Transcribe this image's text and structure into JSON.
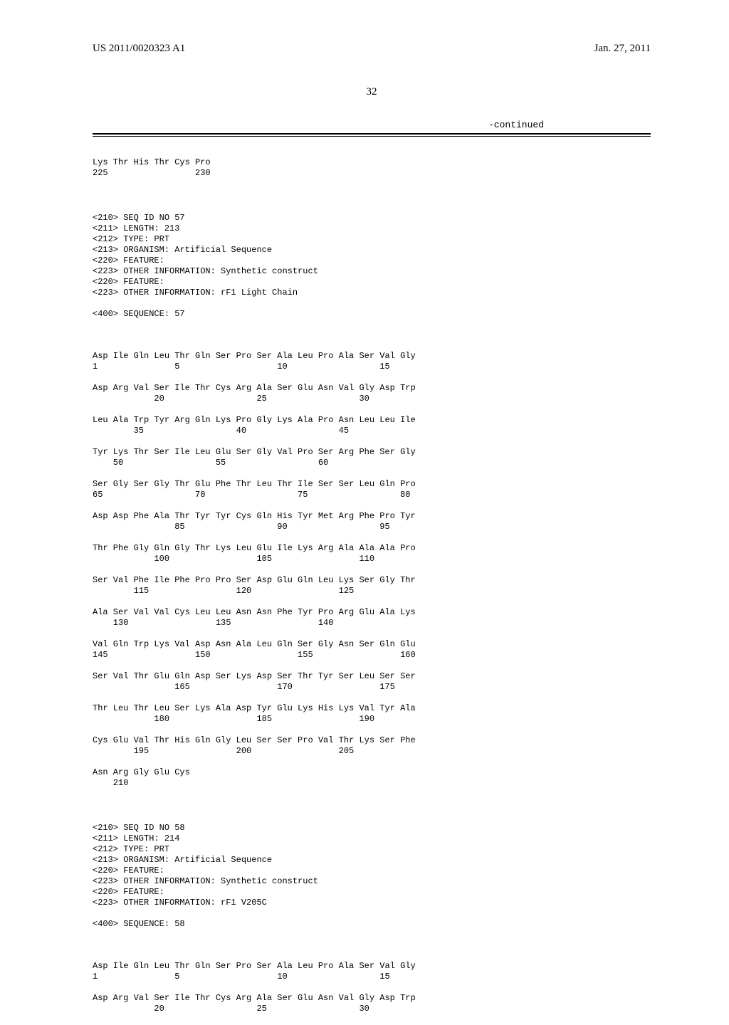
{
  "header": {
    "pub_number": "US 2011/0020323 A1",
    "pub_date": "Jan. 27, 2011"
  },
  "page_number": "32",
  "continued_label": "-continued",
  "seq_tail": {
    "line1": "Lys Thr His Thr Cys Pro",
    "line2": "225                 230"
  },
  "seq57_meta": {
    "l1": "<210> SEQ ID NO 57",
    "l2": "<211> LENGTH: 213",
    "l3": "<212> TYPE: PRT",
    "l4": "<213> ORGANISM: Artificial Sequence",
    "l5": "<220> FEATURE:",
    "l6": "<223> OTHER INFORMATION: Synthetic construct",
    "l7": "<220> FEATURE:",
    "l8": "<223> OTHER INFORMATION: rF1 Light Chain",
    "l9": "<400> SEQUENCE: 57"
  },
  "seq57": {
    "r1a": "Asp Ile Gln Leu Thr Gln Ser Pro Ser Ala Leu Pro Ala Ser Val Gly",
    "r1b": "1               5                   10                  15",
    "r2a": "Asp Arg Val Ser Ile Thr Cys Arg Ala Ser Glu Asn Val Gly Asp Trp",
    "r2b": "            20                  25                  30",
    "r3a": "Leu Ala Trp Tyr Arg Gln Lys Pro Gly Lys Ala Pro Asn Leu Leu Ile",
    "r3b": "        35                  40                  45",
    "r4a": "Tyr Lys Thr Ser Ile Leu Glu Ser Gly Val Pro Ser Arg Phe Ser Gly",
    "r4b": "    50                  55                  60",
    "r5a": "Ser Gly Ser Gly Thr Glu Phe Thr Leu Thr Ile Ser Ser Leu Gln Pro",
    "r5b": "65                  70                  75                  80",
    "r6a": "Asp Asp Phe Ala Thr Tyr Tyr Cys Gln His Tyr Met Arg Phe Pro Tyr",
    "r6b": "                85                  90                  95",
    "r7a": "Thr Phe Gly Gln Gly Thr Lys Leu Glu Ile Lys Arg Ala Ala Ala Pro",
    "r7b": "            100                 105                 110",
    "r8a": "Ser Val Phe Ile Phe Pro Pro Ser Asp Glu Gln Leu Lys Ser Gly Thr",
    "r8b": "        115                 120                 125",
    "r9a": "Ala Ser Val Val Cys Leu Leu Asn Asn Phe Tyr Pro Arg Glu Ala Lys",
    "r9b": "    130                 135                 140",
    "r10a": "Val Gln Trp Lys Val Asp Asn Ala Leu Gln Ser Gly Asn Ser Gln Glu",
    "r10b": "145                 150                 155                 160",
    "r11a": "Ser Val Thr Glu Gln Asp Ser Lys Asp Ser Thr Tyr Ser Leu Ser Ser",
    "r11b": "                165                 170                 175",
    "r12a": "Thr Leu Thr Leu Ser Lys Ala Asp Tyr Glu Lys His Lys Val Tyr Ala",
    "r12b": "            180                 185                 190",
    "r13a": "Cys Glu Val Thr His Gln Gly Leu Ser Ser Pro Val Thr Lys Ser Phe",
    "r13b": "        195                 200                 205",
    "r14a": "Asn Arg Gly Glu Cys",
    "r14b": "    210"
  },
  "seq58_meta": {
    "l1": "<210> SEQ ID NO 58",
    "l2": "<211> LENGTH: 214",
    "l3": "<212> TYPE: PRT",
    "l4": "<213> ORGANISM: Artificial Sequence",
    "l5": "<220> FEATURE:",
    "l6": "<223> OTHER INFORMATION: Synthetic construct",
    "l7": "<220> FEATURE:",
    "l8": "<223> OTHER INFORMATION: rF1 V205C",
    "l9": "<400> SEQUENCE: 58"
  },
  "seq58": {
    "r1a": "Asp Ile Gln Leu Thr Gln Ser Pro Ser Ala Leu Pro Ala Ser Val Gly",
    "r1b": "1               5                   10                  15",
    "r2a": "Asp Arg Val Ser Ile Thr Cys Arg Ala Ser Glu Asn Val Gly Asp Trp",
    "r2b": "            20                  25                  30"
  }
}
